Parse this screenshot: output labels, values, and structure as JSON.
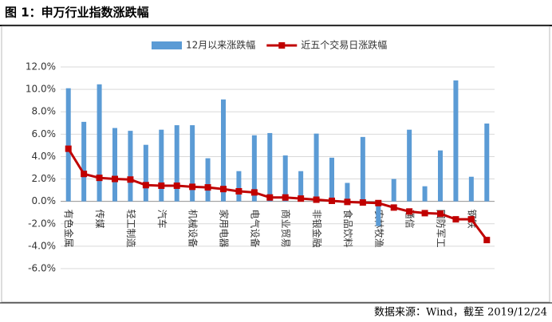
{
  "chart_data": {
    "type": "bar_line",
    "title": "图 1：申万行业指数涨跌幅",
    "source": "数据来源：Wind，截至 2019/12/24",
    "categories": [
      "有色金属",
      null,
      "传媒",
      null,
      "轻工制造",
      null,
      "汽车",
      null,
      "机械设备",
      null,
      "家用电器",
      null,
      "电气设备",
      null,
      "商业贸易",
      null,
      "非银金融",
      null,
      "食品饮料",
      null,
      "农林牧渔",
      null,
      "通信",
      null,
      "国防军工",
      null,
      "钢铁",
      null
    ],
    "series": [
      {
        "name": "12月以来涨跌幅",
        "type": "bar",
        "color": "#5b9bd5",
        "values": [
          10.1,
          7.1,
          10.45,
          6.55,
          6.3,
          5.05,
          6.4,
          6.8,
          6.8,
          3.85,
          9.1,
          2.7,
          5.9,
          6.1,
          4.1,
          2.7,
          6.05,
          3.9,
          1.65,
          5.75,
          -2.2,
          2.0,
          6.4,
          1.35,
          4.55,
          10.8,
          2.2,
          6.95
        ]
      },
      {
        "name": "近五个交易日涨跌幅",
        "type": "line",
        "color": "#c00000",
        "values": [
          4.7,
          2.45,
          2.1,
          2.0,
          1.95,
          1.45,
          1.4,
          1.4,
          1.3,
          1.25,
          1.1,
          0.9,
          0.8,
          0.35,
          0.35,
          0.25,
          0.15,
          0.05,
          -0.05,
          -0.1,
          -0.15,
          -0.55,
          -0.9,
          -1.05,
          -1.1,
          -1.6,
          -1.6,
          -3.45
        ]
      }
    ],
    "ylim": [
      -6,
      12
    ],
    "yticks": [
      {
        "value": 12,
        "label": "12.0%"
      },
      {
        "value": 10,
        "label": "10.0%"
      },
      {
        "value": 8,
        "label": "8.0%"
      },
      {
        "value": 6,
        "label": "6.0%"
      },
      {
        "value": 4,
        "label": "4.0%"
      },
      {
        "value": 2,
        "label": "2.0%"
      },
      {
        "value": 0,
        "label": "0.0%"
      },
      {
        "value": -2,
        "label": "-2.0%"
      },
      {
        "value": -4,
        "label": "-4.0%"
      },
      {
        "value": -6,
        "label": "-6.0%"
      }
    ],
    "grid": true,
    "legend": "top"
  }
}
